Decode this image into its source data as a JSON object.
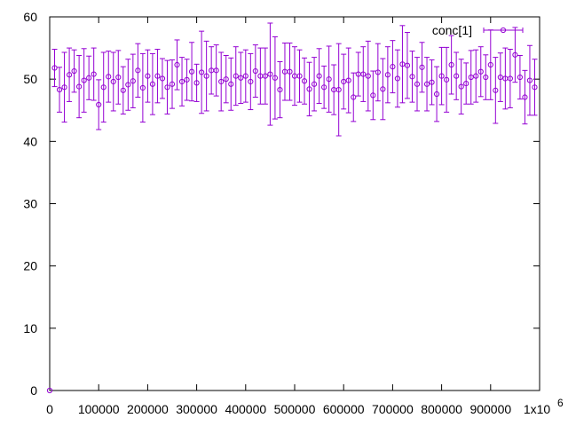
{
  "chart_data": {
    "type": "scatter",
    "title": "",
    "xlabel": "",
    "ylabel": "",
    "xlim": [
      0,
      1000000
    ],
    "ylim": [
      0,
      60
    ],
    "grid": false,
    "legend_position": "top-right",
    "x_tick_labels": [
      "0",
      "100000",
      "200000",
      "300000",
      "400000",
      "500000",
      "600000",
      "700000",
      "800000",
      "900000",
      "1x10"
    ],
    "x_exponent_label": "6",
    "y_tick_labels": [
      "0",
      "10",
      "20",
      "30",
      "40",
      "50",
      "60"
    ],
    "series": [
      {
        "name": "conc[1]",
        "color": "#9400d3",
        "marker": "open-circle",
        "error_bars": true,
        "x": [
          0,
          10000,
          20000,
          30000,
          40000,
          50000,
          60000,
          70000,
          80000,
          90000,
          100000,
          110000,
          120000,
          130000,
          140000,
          150000,
          160000,
          170000,
          180000,
          190000,
          200000,
          210000,
          220000,
          230000,
          240000,
          250000,
          260000,
          270000,
          280000,
          290000,
          300000,
          310000,
          320000,
          330000,
          340000,
          350000,
          360000,
          370000,
          380000,
          390000,
          400000,
          410000,
          420000,
          430000,
          440000,
          450000,
          460000,
          470000,
          480000,
          490000,
          500000,
          510000,
          520000,
          530000,
          540000,
          550000,
          560000,
          570000,
          580000,
          590000,
          600000,
          610000,
          620000,
          630000,
          640000,
          650000,
          660000,
          670000,
          680000,
          690000,
          700000,
          710000,
          720000,
          730000,
          740000,
          750000,
          760000,
          770000,
          780000,
          790000,
          800000,
          810000,
          820000,
          830000,
          840000,
          850000,
          860000,
          870000,
          880000,
          890000,
          900000,
          910000,
          920000,
          930000,
          940000,
          950000,
          960000,
          970000,
          980000,
          990000
        ],
        "y": [
          0,
          51.8,
          48.3,
          48.7,
          50.7,
          51.3,
          48.8,
          49.8,
          50.2,
          50.8,
          45.9,
          48.7,
          50.4,
          49.6,
          50.3,
          48.2,
          49.1,
          49.7,
          51.4,
          48.6,
          50.5,
          49.2,
          50.5,
          50.1,
          48.7,
          49.2,
          52.3,
          49.6,
          49.9,
          51.2,
          49.4,
          51.1,
          50.5,
          51.4,
          51.4,
          49.6,
          50,
          49.2,
          50.5,
          50.2,
          50.5,
          49.6,
          51.3,
          50.5,
          50.5,
          50.8,
          50.2,
          48.3,
          51.2,
          51.2,
          50.5,
          50.5,
          49.7,
          48.4,
          49.2,
          50.5,
          48.7,
          50,
          48.3,
          48.3,
          49.6,
          49.8,
          47.1,
          50.8,
          50.8,
          50.5,
          47.4,
          51.1,
          48.4,
          50.7,
          52,
          50.1,
          52.4,
          52.2,
          50.4,
          49.2,
          51.9,
          49.2,
          49.5,
          47.6,
          50.5,
          49.9,
          52.3,
          50.5,
          48.8,
          49.3,
          50.3,
          50.5,
          51.2,
          50.3,
          52.3,
          48.2,
          50.3,
          50.1,
          50.1,
          53.9,
          50.3,
          47.1,
          49.8,
          48.7
        ],
        "err": [
          0,
          3,
          3.6,
          5.6,
          4.3,
          3.4,
          5,
          5.1,
          3.5,
          4.2,
          4,
          5.6,
          4.1,
          4.7,
          4.3,
          3.8,
          4.1,
          4.3,
          4.3,
          5.5,
          4.2,
          4.9,
          4.3,
          3.2,
          4.3,
          3.9,
          4,
          3.9,
          3.3,
          4.7,
          3,
          6.6,
          5.6,
          3.8,
          4.1,
          4.7,
          3.8,
          4.2,
          4.7,
          4.1,
          4.2,
          4.5,
          4.2,
          4.5,
          4.5,
          8.2,
          6.6,
          4.5,
          4.6,
          4.6,
          4.7,
          4.2,
          3.7,
          4.3,
          4.3,
          4.4,
          3.4,
          5.3,
          4,
          7.4,
          4.4,
          5.2,
          3.9,
          3.5,
          4.4,
          5.6,
          3.9,
          4.6,
          4.9,
          4.5,
          4.2,
          4.6,
          6.2,
          5.3,
          4.1,
          4.3,
          4,
          4.3,
          3.6,
          4.4,
          4.6,
          5.2,
          4.7,
          3.8,
          4.4,
          3.3,
          4.3,
          4.2,
          4,
          3.6,
          5.6,
          5.3,
          3.9,
          4.9,
          4.7,
          4.4,
          3.5,
          4.3,
          5.6,
          4.5
        ]
      }
    ]
  }
}
